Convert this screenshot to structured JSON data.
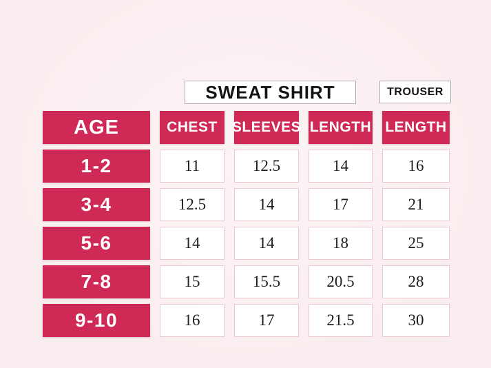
{
  "colors": {
    "background": "#faedef",
    "accent": "#cf2a56",
    "cell_border": "#ecc9d0",
    "value_text": "#1d1d1d"
  },
  "titles": {
    "sweatshirt": "SWEAT SHIRT",
    "trouser": "TROUSER"
  },
  "table": {
    "age_header": "AGE",
    "columns": [
      "CHEST",
      "SLEEVES",
      "LENGTH",
      "LENGTH"
    ],
    "rows": [
      {
        "age": "1-2",
        "values": [
          "11",
          "12.5",
          "14",
          "16"
        ]
      },
      {
        "age": "3-4",
        "values": [
          "12.5",
          "14",
          "17",
          "21"
        ]
      },
      {
        "age": "5-6",
        "values": [
          "14",
          "14",
          "18",
          "25"
        ]
      },
      {
        "age": "7-8",
        "values": [
          "15",
          "15.5",
          "20.5",
          "28"
        ]
      },
      {
        "age": "9-10",
        "values": [
          "16",
          "17",
          "21.5",
          "30"
        ]
      }
    ]
  },
  "chart_data": {
    "type": "table",
    "column_groups": [
      {
        "label": "SWEAT SHIRT",
        "columns": [
          "CHEST",
          "SLEEVES",
          "LENGTH"
        ]
      },
      {
        "label": "TROUSER",
        "columns": [
          "LENGTH"
        ]
      }
    ],
    "row_header": "AGE",
    "columns": [
      "AGE",
      "CHEST",
      "SLEEVES",
      "LENGTH",
      "LENGTH"
    ],
    "rows": [
      [
        "1-2",
        11,
        12.5,
        14,
        16
      ],
      [
        "3-4",
        12.5,
        14,
        17,
        21
      ],
      [
        "5-6",
        14,
        14,
        18,
        25
      ],
      [
        "7-8",
        15,
        15.5,
        20.5,
        28
      ],
      [
        "9-10",
        16,
        17,
        21.5,
        30
      ]
    ]
  }
}
